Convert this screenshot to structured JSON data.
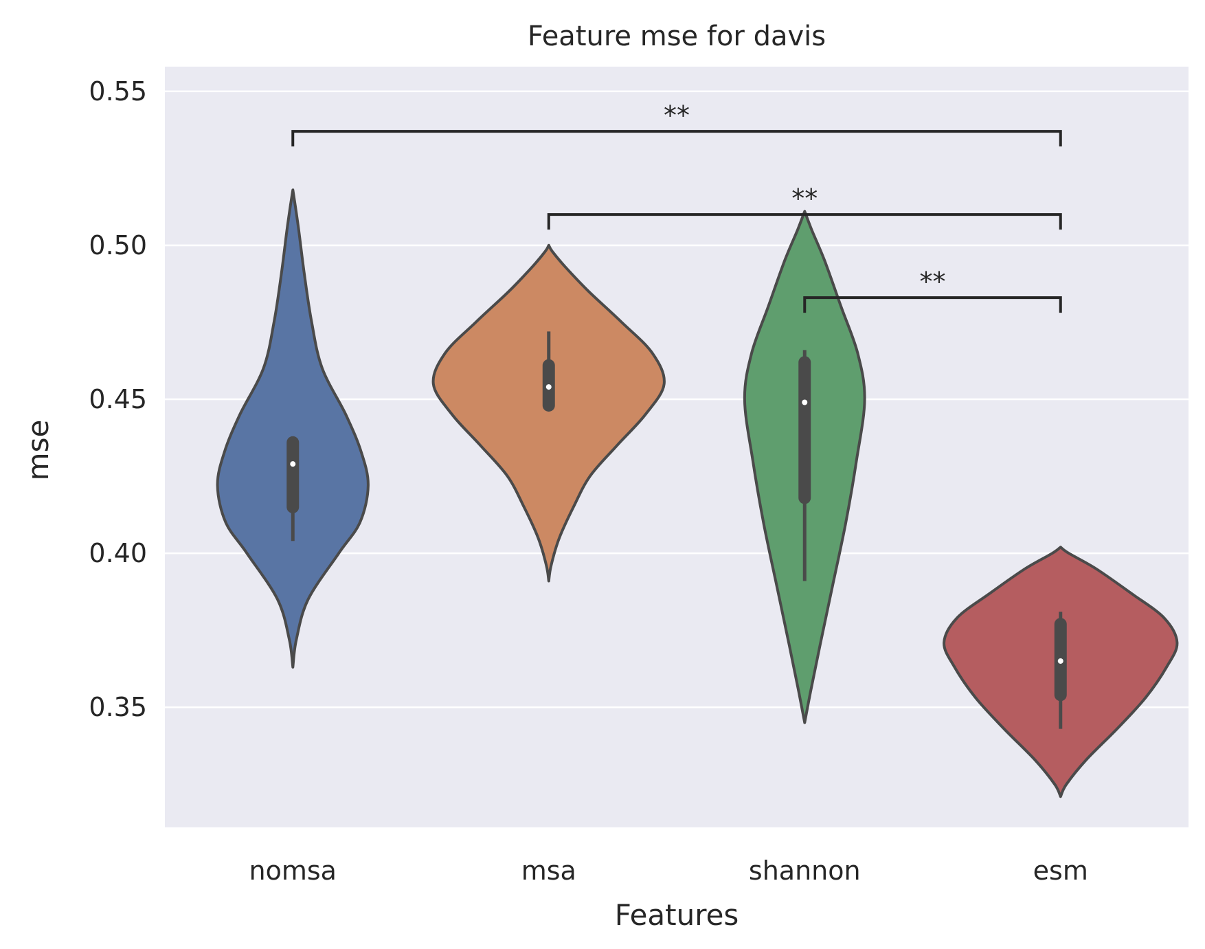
{
  "chart_data": {
    "type": "violin",
    "title": "Feature mse for davis",
    "xlabel": "Features",
    "ylabel": "mse",
    "ylim": [
      0.311,
      0.558
    ],
    "yticks": [
      "0.35",
      "0.40",
      "0.45",
      "0.50",
      "0.55"
    ],
    "grid": true,
    "background_color": "#eaeaf2",
    "outline_color": "#4a4a4a",
    "categories": [
      "nomsa",
      "msa",
      "shannon",
      "esm"
    ],
    "violins": [
      {
        "category": "nomsa",
        "color": "#5975a4",
        "min": 0.363,
        "max": 0.518,
        "q1": 0.415,
        "median": 0.429,
        "q3": 0.436,
        "whisker_low": 0.404,
        "whisker_high": 0.436,
        "profile": [
          [
            0.363,
            0.0
          ],
          [
            0.372,
            0.03
          ],
          [
            0.385,
            0.13
          ],
          [
            0.4,
            0.39
          ],
          [
            0.41,
            0.57
          ],
          [
            0.422,
            0.64
          ],
          [
            0.433,
            0.58
          ],
          [
            0.445,
            0.45
          ],
          [
            0.46,
            0.25
          ],
          [
            0.475,
            0.16
          ],
          [
            0.49,
            0.1
          ],
          [
            0.505,
            0.05
          ],
          [
            0.513,
            0.02
          ],
          [
            0.518,
            0.0
          ]
        ]
      },
      {
        "category": "msa",
        "color": "#cc8963",
        "min": 0.391,
        "max": 0.5,
        "q1": 0.448,
        "median": 0.454,
        "q3": 0.461,
        "whisker_low": 0.448,
        "whisker_high": 0.472,
        "profile": [
          [
            0.391,
            0.0
          ],
          [
            0.396,
            0.02
          ],
          [
            0.405,
            0.09
          ],
          [
            0.415,
            0.21
          ],
          [
            0.425,
            0.35
          ],
          [
            0.435,
            0.58
          ],
          [
            0.445,
            0.82
          ],
          [
            0.455,
            0.98
          ],
          [
            0.465,
            0.88
          ],
          [
            0.475,
            0.62
          ],
          [
            0.485,
            0.34
          ],
          [
            0.493,
            0.14
          ],
          [
            0.498,
            0.03
          ],
          [
            0.5,
            0.0
          ]
        ]
      },
      {
        "category": "shannon",
        "color": "#5f9e6e",
        "min": 0.345,
        "max": 0.511,
        "q1": 0.418,
        "median": 0.449,
        "q3": 0.462,
        "whisker_low": 0.391,
        "whisker_high": 0.466,
        "profile": [
          [
            0.345,
            0.0
          ],
          [
            0.355,
            0.05
          ],
          [
            0.37,
            0.13
          ],
          [
            0.39,
            0.24
          ],
          [
            0.41,
            0.35
          ],
          [
            0.43,
            0.44
          ],
          [
            0.45,
            0.51
          ],
          [
            0.465,
            0.45
          ],
          [
            0.48,
            0.31
          ],
          [
            0.495,
            0.17
          ],
          [
            0.505,
            0.06
          ],
          [
            0.511,
            0.0
          ]
        ]
      },
      {
        "category": "esm",
        "color": "#b55d60",
        "min": 0.321,
        "max": 0.402,
        "q1": 0.354,
        "median": 0.365,
        "q3": 0.377,
        "whisker_low": 0.343,
        "whisker_high": 0.381,
        "profile": [
          [
            0.321,
            0.0
          ],
          [
            0.325,
            0.05
          ],
          [
            0.333,
            0.22
          ],
          [
            0.343,
            0.48
          ],
          [
            0.353,
            0.72
          ],
          [
            0.363,
            0.9
          ],
          [
            0.371,
            0.99
          ],
          [
            0.379,
            0.88
          ],
          [
            0.387,
            0.6
          ],
          [
            0.395,
            0.3
          ],
          [
            0.4,
            0.07
          ],
          [
            0.402,
            0.0
          ]
        ]
      }
    ],
    "significance": [
      {
        "from": "nomsa",
        "to": "esm",
        "y": 0.537,
        "label": "**"
      },
      {
        "from": "msa",
        "to": "esm",
        "y": 0.51,
        "label": "**"
      },
      {
        "from": "shannon",
        "to": "esm",
        "y": 0.483,
        "label": "**"
      }
    ]
  }
}
